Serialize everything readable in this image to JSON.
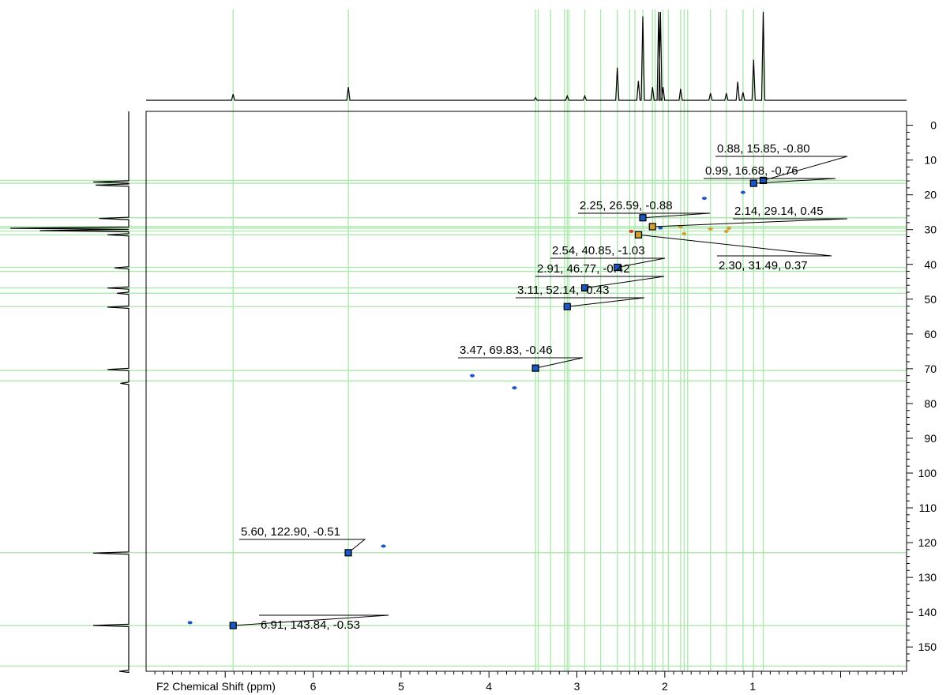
{
  "chart_data": {
    "type": "scatter",
    "subtype": "2D NMR HSQC contour plot",
    "xlabel": "F2 Chemical Shift (ppm)",
    "ylabel": "",
    "xlim": [
      7.9,
      -0.75
    ],
    "ylim": [
      -4,
      157
    ],
    "x_ticks": [
      6,
      5,
      4,
      3,
      2,
      1
    ],
    "y_ticks": [
      0,
      10,
      20,
      30,
      40,
      50,
      60,
      70,
      80,
      90,
      100,
      110,
      120,
      130,
      140,
      150
    ],
    "grid_color": "#a8e8a8",
    "peaks": [
      {
        "x": 0.88,
        "y": 15.85,
        "label": "0.88, 15.85, -0.80",
        "color": "#1a56c8"
      },
      {
        "x": 0.99,
        "y": 16.68,
        "label": "0.99, 16.68, -0.76",
        "color": "#1a56c8"
      },
      {
        "x": 2.25,
        "y": 26.59,
        "label": "2.25, 26.59, -0.88",
        "color": "#1a56c8"
      },
      {
        "x": 2.14,
        "y": 29.14,
        "label": "2.14, 29.14, 0.45",
        "color": "#d0a030"
      },
      {
        "x": 2.3,
        "y": 31.49,
        "label": "2.30, 31.49, 0.37",
        "color": "#d0a030"
      },
      {
        "x": 2.54,
        "y": 40.85,
        "label": "2.54, 40.85, -1.03",
        "color": "#1a56c8"
      },
      {
        "x": 2.91,
        "y": 46.77,
        "label": "2.91, 46.77, -0.42",
        "color": "#1a56c8"
      },
      {
        "x": 3.11,
        "y": 52.14,
        "label": "3.11, 52.14, -0.43",
        "color": "#1a56c8"
      },
      {
        "x": 3.47,
        "y": 69.83,
        "label": "3.47, 69.83, -0.46",
        "color": "#1a56c8"
      },
      {
        "x": 5.6,
        "y": 122.9,
        "label": "5.60, 122.90, -0.51",
        "color": "#1a56c8"
      },
      {
        "x": 6.91,
        "y": 143.84,
        "label": "6.91, 143.84, -0.53",
        "color": "#1a56c8"
      }
    ],
    "unlabeled_peaks": [
      {
        "x": 2.05,
        "y": 29.5,
        "color": "#1a56c8"
      },
      {
        "x": 2.38,
        "y": 30.5,
        "color": "#d04020"
      },
      {
        "x": 1.82,
        "y": 29.2,
        "color": "#d0a030"
      },
      {
        "x": 1.78,
        "y": 31.2,
        "color": "#d0a030"
      },
      {
        "x": 1.48,
        "y": 29.8,
        "color": "#d0a030"
      },
      {
        "x": 1.3,
        "y": 30.5,
        "color": "#d0a030"
      },
      {
        "x": 1.27,
        "y": 29.6,
        "color": "#d0a030"
      },
      {
        "x": 1.55,
        "y": 21.0,
        "color": "#1a56c8"
      },
      {
        "x": 1.11,
        "y": 19.3,
        "color": "#1a56c8"
      },
      {
        "x": 4.19,
        "y": 72.0,
        "color": "#1a56c8"
      },
      {
        "x": 3.71,
        "y": 75.5,
        "color": "#1a56c8"
      },
      {
        "x": 5.2,
        "y": 121.0,
        "color": "#1a56c8"
      },
      {
        "x": 7.4,
        "y": 143.0,
        "color": "#1a56c8"
      }
    ],
    "vertical_guides": [
      3.47,
      3.44,
      3.3,
      3.14,
      3.11,
      3.09,
      2.91,
      2.73,
      2.54,
      2.4,
      2.34,
      2.25,
      2.14,
      2.11,
      2.02,
      1.96,
      1.82,
      1.78,
      1.74,
      1.48,
      1.3,
      1.11,
      0.99,
      0.88,
      5.6,
      6.91
    ],
    "horizontal_guides": [
      15.85,
      16.68,
      26.59,
      29.14,
      29.6,
      30.4,
      31.49,
      40.85,
      42.0,
      46.77,
      48.3,
      52.14,
      70.5,
      73.5,
      122.9,
      143.84,
      155.5
    ],
    "f2_projection": [
      {
        "x": 6.91,
        "h": 0.07
      },
      {
        "x": 5.6,
        "h": 0.15
      },
      {
        "x": 3.47,
        "h": 0.03
      },
      {
        "x": 3.11,
        "h": 0.05
      },
      {
        "x": 2.91,
        "h": 0.05
      },
      {
        "x": 2.54,
        "h": 0.37
      },
      {
        "x": 2.3,
        "h": 0.22
      },
      {
        "x": 2.25,
        "h": 0.95
      },
      {
        "x": 2.14,
        "h": 0.15
      },
      {
        "x": 2.07,
        "h": 1.0
      },
      {
        "x": 2.05,
        "h": 1.0
      },
      {
        "x": 2.02,
        "h": 0.15
      },
      {
        "x": 1.82,
        "h": 0.13
      },
      {
        "x": 1.48,
        "h": 0.08
      },
      {
        "x": 1.3,
        "h": 0.08
      },
      {
        "x": 1.17,
        "h": 0.21
      },
      {
        "x": 1.11,
        "h": 0.09
      },
      {
        "x": 0.99,
        "h": 0.46
      },
      {
        "x": 0.88,
        "h": 1.0
      }
    ],
    "f1_projection": [
      {
        "y": 16.3,
        "h": 0.3
      },
      {
        "y": 17.2,
        "h": 0.28
      },
      {
        "y": 26.8,
        "h": 0.25
      },
      {
        "y": 29.6,
        "h": 1.0
      },
      {
        "y": 30.3,
        "h": 0.75
      },
      {
        "y": 31.5,
        "h": 0.18
      },
      {
        "y": 41.0,
        "h": 0.12
      },
      {
        "y": 46.8,
        "h": 0.18
      },
      {
        "y": 48.3,
        "h": 0.1
      },
      {
        "y": 52.3,
        "h": 0.18
      },
      {
        "y": 70.2,
        "h": 0.18
      },
      {
        "y": 74.2,
        "h": 0.07
      },
      {
        "y": 123.0,
        "h": 0.3
      },
      {
        "y": 143.8,
        "h": 0.3
      },
      {
        "y": 157.0,
        "h": 0.08
      }
    ]
  }
}
